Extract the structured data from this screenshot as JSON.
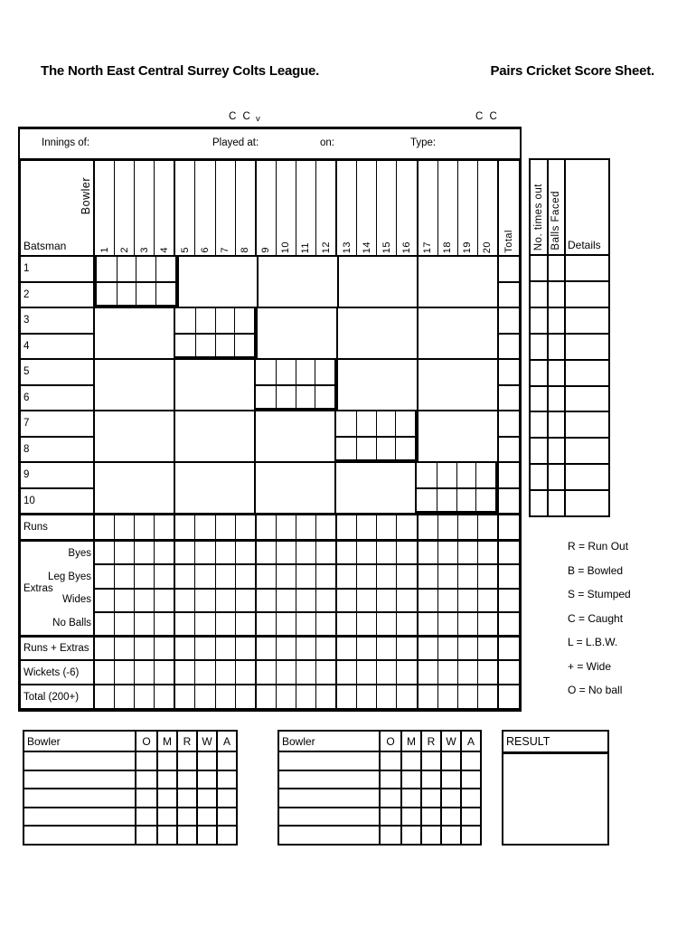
{
  "header": {
    "league_title": "The North East Central Surrey Colts League.",
    "sheet_title": "Pairs Cricket Score Sheet."
  },
  "match": {
    "home_club_suffix": "C C",
    "versus": "v",
    "away_club_suffix": "C C",
    "innings_of_label": "Innings of:",
    "played_at_label": "Played at:",
    "on_label": "on:",
    "type_label": "Type:"
  },
  "grid": {
    "bowler_label": "Bowler",
    "batsman_label": "Batsman",
    "total_label": "Total",
    "over_numbers": [
      "1",
      "2",
      "3",
      "4",
      "5",
      "6",
      "7",
      "8",
      "9",
      "10",
      "11",
      "12",
      "13",
      "14",
      "15",
      "16",
      "17",
      "18",
      "19",
      "20"
    ],
    "batsman_numbers": [
      "1",
      "2",
      "3",
      "4",
      "5",
      "6",
      "7",
      "8",
      "9",
      "10"
    ],
    "runs_label": "Runs",
    "extras_label": "Extras",
    "extras_rows": [
      "Byes",
      "Leg Byes",
      "Wides",
      "No Balls"
    ],
    "summary_rows": [
      "Runs + Extras",
      "Wickets (-6)",
      "Total (200+)"
    ]
  },
  "details_panel": {
    "columns": [
      "No. times out",
      "Balls Faced",
      "Details"
    ]
  },
  "legend": [
    "R = Run Out",
    "B = Bowled",
    "S = Stumped",
    "C = Caught",
    "L = L.B.W.",
    "+ = Wide",
    "O = No ball"
  ],
  "bowling": {
    "bowler_label": "Bowler",
    "columns": [
      "O",
      "M",
      "R",
      "W",
      "A"
    ]
  },
  "result": {
    "label": "RESULT"
  }
}
